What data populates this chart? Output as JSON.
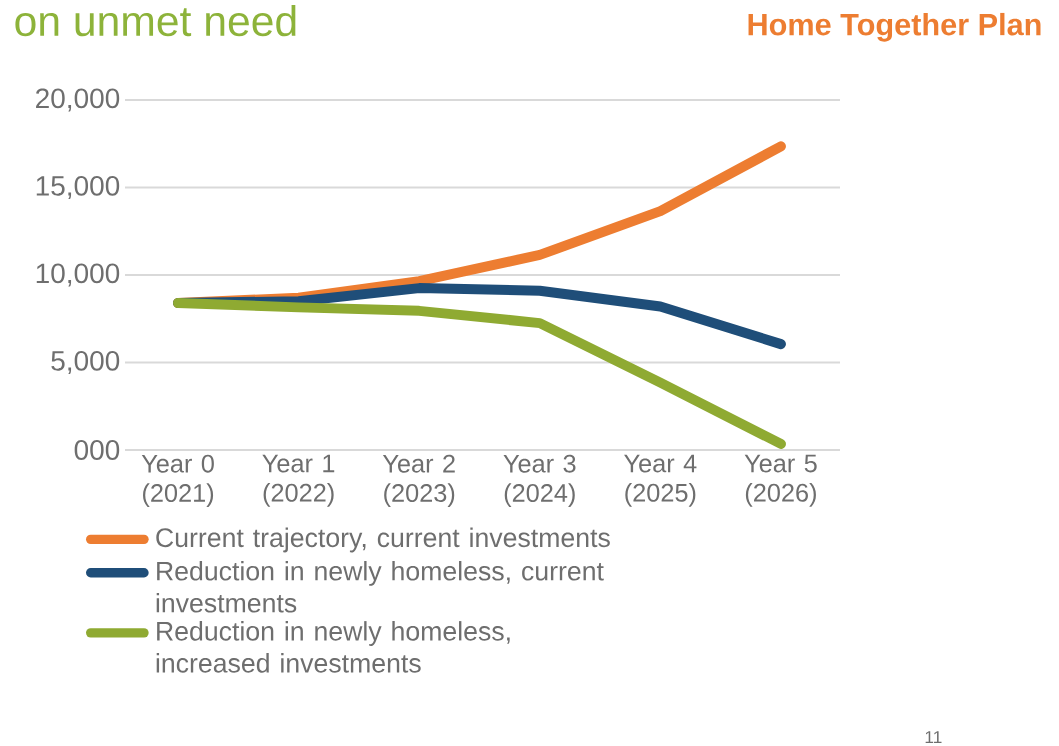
{
  "chart_data": {
    "type": "line",
    "title": "on unmet need",
    "subtitle": "Home Together Plan",
    "annotations": [
      "11"
    ],
    "categories": [
      "Year 0 (2021)",
      "Year 1 (2022)",
      "Year 2 (2023)",
      "Year 3 (2024)",
      "Year 4 (2025)",
      "Year 5 (2026)"
    ],
    "ylim": [
      0,
      20000
    ],
    "yticks": [
      {
        "value": 0,
        "label": "000"
      },
      {
        "value": 5000,
        "label": "5,000"
      },
      {
        "value": 10000,
        "label": "10,000"
      },
      {
        "value": 15000,
        "label": "15,000"
      },
      {
        "value": 20000,
        "label": "20,000"
      }
    ],
    "grid": "y",
    "legend": "bottom",
    "line_style": "solid",
    "series": [
      {
        "name": "Current trajectory, current investments",
        "color": "#ed7d31",
        "values": [
          8400,
          8700,
          9650,
          11150,
          13650,
          17350
        ]
      },
      {
        "name": "Reduction in newly homeless, current investments",
        "color": "#1f4e79",
        "values": [
          8400,
          8500,
          9250,
          9100,
          8200,
          6050
        ]
      },
      {
        "name": "Reduction in newly homeless, increased investments",
        "color": "#8faa32",
        "values": [
          8400,
          8150,
          7950,
          7250,
          3850,
          350
        ]
      }
    ]
  }
}
